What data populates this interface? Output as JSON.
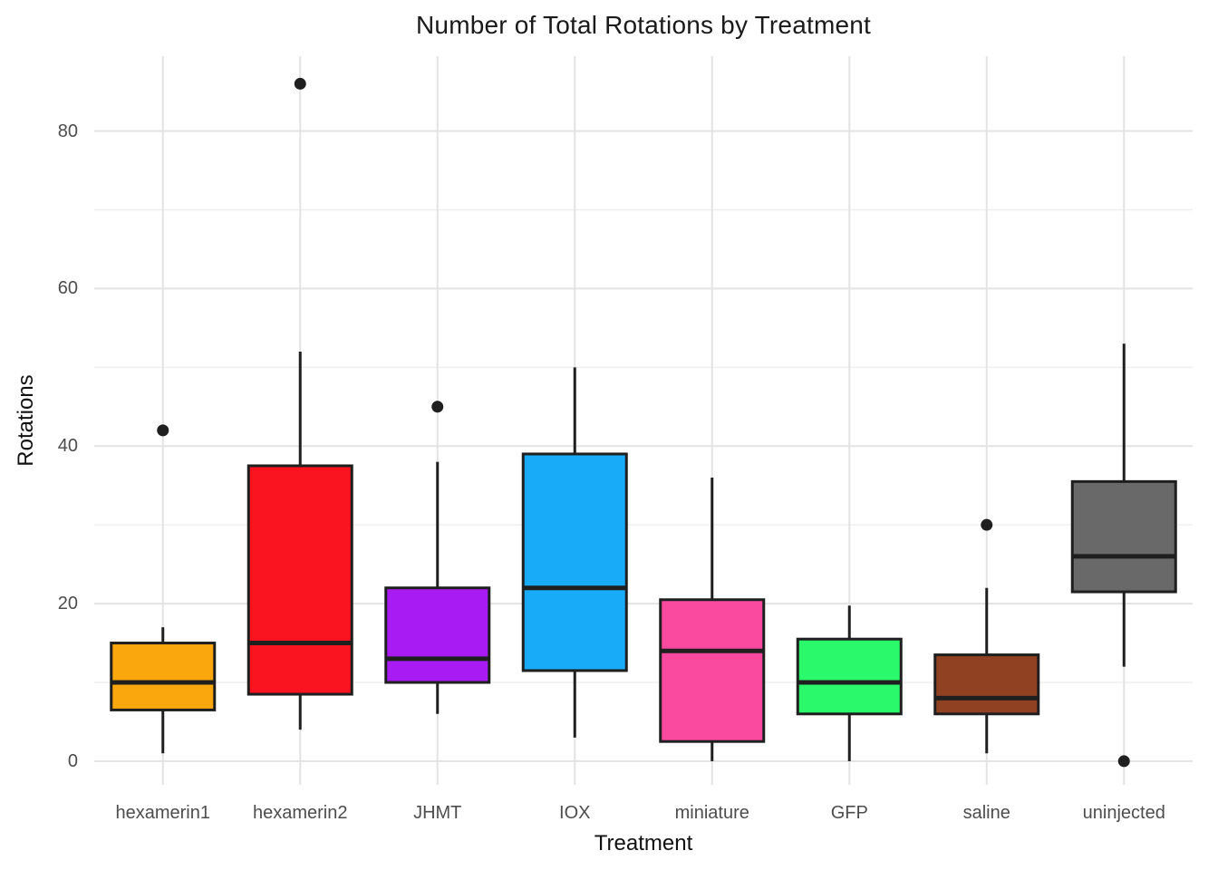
{
  "figure": {
    "title": "Number of Total Rotations by Treatment",
    "x_axis_label": "Treatment",
    "y_axis_label": "Rotations"
  },
  "chart_data": {
    "type": "boxplot",
    "title": "Number of Total Rotations by Treatment",
    "xlabel": "Treatment",
    "ylabel": "Rotations",
    "y_ticks": [
      0,
      20,
      40,
      60,
      80
    ],
    "y_minor_ticks": [
      10,
      30,
      50,
      70
    ],
    "y_range": [
      -3,
      89.5
    ],
    "grid": "horizontal major+minor, vertical major at categories",
    "legend": "none",
    "background": "#FFFFFF",
    "categories": [
      "hexamerin1",
      "hexamerin2",
      "JHMT",
      "IOX",
      "miniature",
      "GFP",
      "saline",
      "uninjected"
    ],
    "series": [
      {
        "category": "hexamerin1",
        "color": "#F9A70D",
        "whisker_low": 1,
        "q1": 6.5,
        "median": 10,
        "q3": 15,
        "whisker_high": 17,
        "outliers": [
          42
        ]
      },
      {
        "category": "hexamerin2",
        "color": "#FA141F",
        "whisker_low": 4,
        "q1": 8.5,
        "median": 15,
        "q3": 37.5,
        "whisker_high": 52,
        "outliers": [
          86
        ]
      },
      {
        "category": "JHMT",
        "color": "#A81BF2",
        "whisker_low": 6,
        "q1": 10,
        "median": 13,
        "q3": 22,
        "whisker_high": 38,
        "outliers": [
          45
        ]
      },
      {
        "category": "IOX",
        "color": "#18ACF8",
        "whisker_low": 3,
        "q1": 11.5,
        "median": 22,
        "q3": 39,
        "whisker_high": 50,
        "outliers": []
      },
      {
        "category": "miniature",
        "color": "#FA4AA0",
        "whisker_low": 0,
        "q1": 2.5,
        "median": 14,
        "q3": 20.5,
        "whisker_high": 36,
        "outliers": []
      },
      {
        "category": "GFP",
        "color": "#29F96B",
        "whisker_low": 0,
        "q1": 6,
        "median": 10,
        "q3": 15.5,
        "whisker_high": 19.75,
        "outliers": []
      },
      {
        "category": "saline",
        "color": "#8F4122",
        "whisker_low": 1,
        "q1": 6,
        "median": 8,
        "q3": 13.5,
        "whisker_high": 22,
        "outliers": [
          30
        ]
      },
      {
        "category": "uninjected",
        "color": "#6A696A",
        "whisker_low": 12,
        "q1": 21.5,
        "median": 26,
        "q3": 35.5,
        "whisker_high": 53,
        "outliers": [
          0
        ]
      }
    ],
    "styles": {
      "box_border_color": "#1F1F1F",
      "median_color": "#1F1F1F",
      "whisker_color": "#1F1F1F",
      "outlier_color": "#1F1F1F",
      "major_grid_color": "#E3E3E3",
      "minor_grid_color": "#EFEFEF",
      "tick_label_color": "#4d4d4d"
    }
  }
}
